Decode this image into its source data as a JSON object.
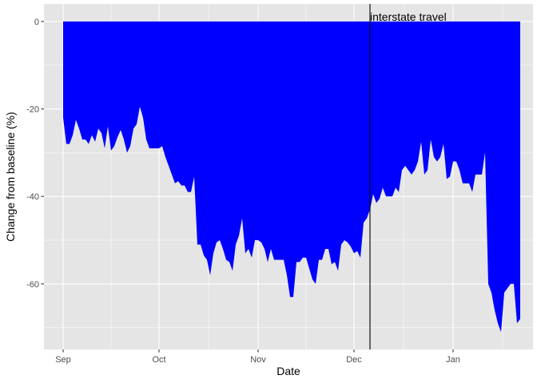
{
  "chart_data": {
    "type": "area",
    "title": "",
    "xlabel": "Date",
    "ylabel": "Change from baseline (%)",
    "xlim": [
      "2020-08-26",
      "2021-01-26"
    ],
    "ylim": [
      -75,
      4
    ],
    "x_ticks": [
      {
        "date": "2020-09-01",
        "label": "Sep"
      },
      {
        "date": "2020-10-01",
        "label": "Oct"
      },
      {
        "date": "2020-11-01",
        "label": "Nov"
      },
      {
        "date": "2020-12-01",
        "label": "Dec"
      },
      {
        "date": "2021-01-01",
        "label": "Jan"
      }
    ],
    "y_ticks": [
      0,
      -20,
      -40,
      -60
    ],
    "fill_color": "#0000ff",
    "panel_color": "#e5e5e5",
    "grid": true,
    "annotation": {
      "date": "2020-12-06",
      "label": "interstate travel"
    },
    "series": [
      {
        "start_date": "2020-09-01",
        "values": [
          -22,
          -28,
          -28,
          -26,
          -22.5,
          -24.5,
          -27,
          -27,
          -28,
          -26,
          -27.5,
          -24.5,
          -25.5,
          -29,
          -24,
          -29.5,
          -28.5,
          -26.5,
          -24.8,
          -27,
          -30,
          -28.5,
          -24.5,
          -23.5,
          -19.5,
          -22,
          -27,
          -29,
          -29,
          -29,
          -29,
          -28.5,
          -31,
          -33,
          -35,
          -37,
          -36.5,
          -37.5,
          -37.5,
          -39,
          -39,
          -35.5,
          -51,
          -51,
          -53.5,
          -54.5,
          -58,
          -53,
          -50.5,
          -50,
          -52,
          -54.5,
          -55,
          -57,
          -51,
          -49,
          -45,
          -53,
          -52,
          -54,
          -50,
          -50,
          -50.5,
          -52,
          -55,
          -52,
          -54.5,
          -54.5,
          -54.5,
          -54.5,
          -58,
          -63,
          -63,
          -55,
          -55,
          -54,
          -54,
          -56.5,
          -59,
          -60,
          -54.5,
          -54.5,
          -52,
          -52,
          -55.5,
          -55,
          -57,
          -51,
          -50,
          -50.5,
          -51.5,
          -53,
          -52.5,
          -54,
          -46,
          -45,
          -43,
          -39.5,
          -41.5,
          -40.5,
          -38,
          -40,
          -40,
          -40,
          -38,
          -39,
          -34,
          -33,
          -34,
          -35,
          -34,
          -32,
          -27.5,
          -35,
          -34,
          -27,
          -31,
          -32,
          -31,
          -28,
          -36,
          -35.5,
          -32,
          -32,
          -34,
          -37,
          -37,
          -37,
          -39,
          -35,
          -35,
          -35,
          -30,
          -60,
          -62,
          -66,
          -69,
          -71,
          -62,
          -61,
          -60,
          -60,
          -69,
          -68
        ]
      }
    ]
  }
}
